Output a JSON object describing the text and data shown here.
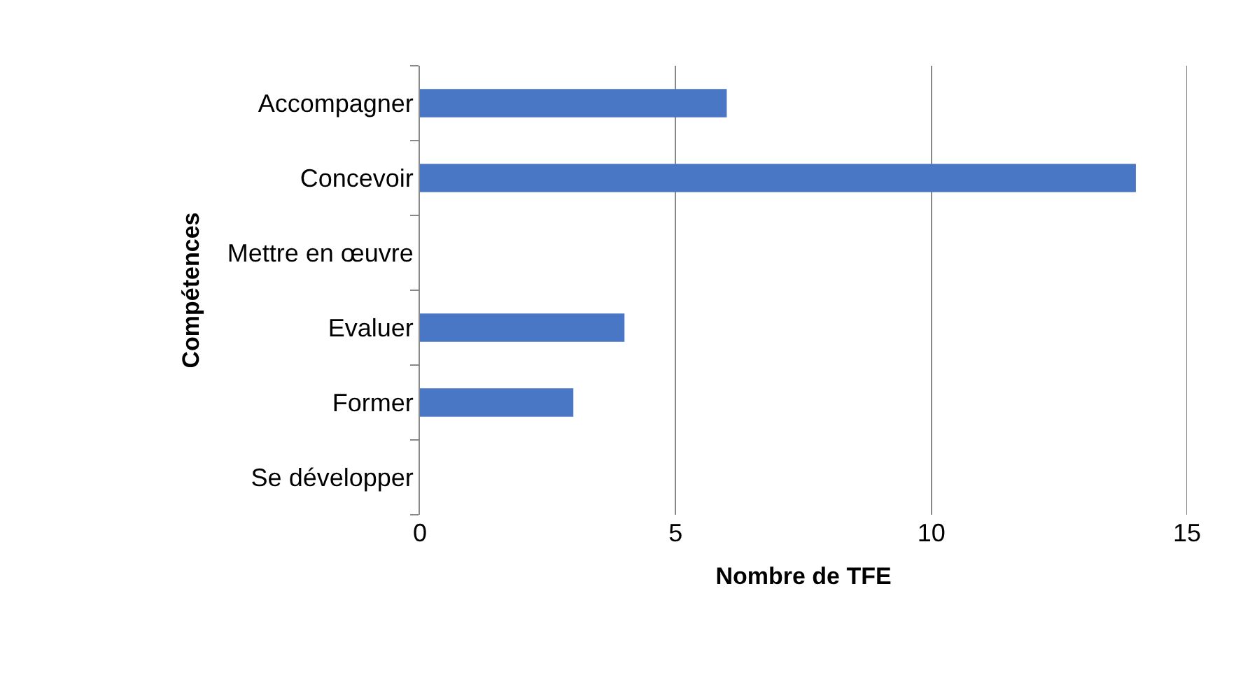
{
  "chart_data": {
    "type": "bar",
    "orientation": "horizontal",
    "ylabel": "Compétences",
    "xlabel": "Nombre de TFE",
    "categories": [
      "Accompagner",
      "Concevoir",
      "Mettre en œuvre",
      "Evaluer",
      "Former",
      "Se développer"
    ],
    "values": [
      6,
      14,
      0,
      4,
      3,
      0
    ],
    "color": "#4a76c6",
    "xlim": [
      0,
      15
    ],
    "xticks": [
      0,
      5,
      10,
      15
    ],
    "grid": "x"
  }
}
